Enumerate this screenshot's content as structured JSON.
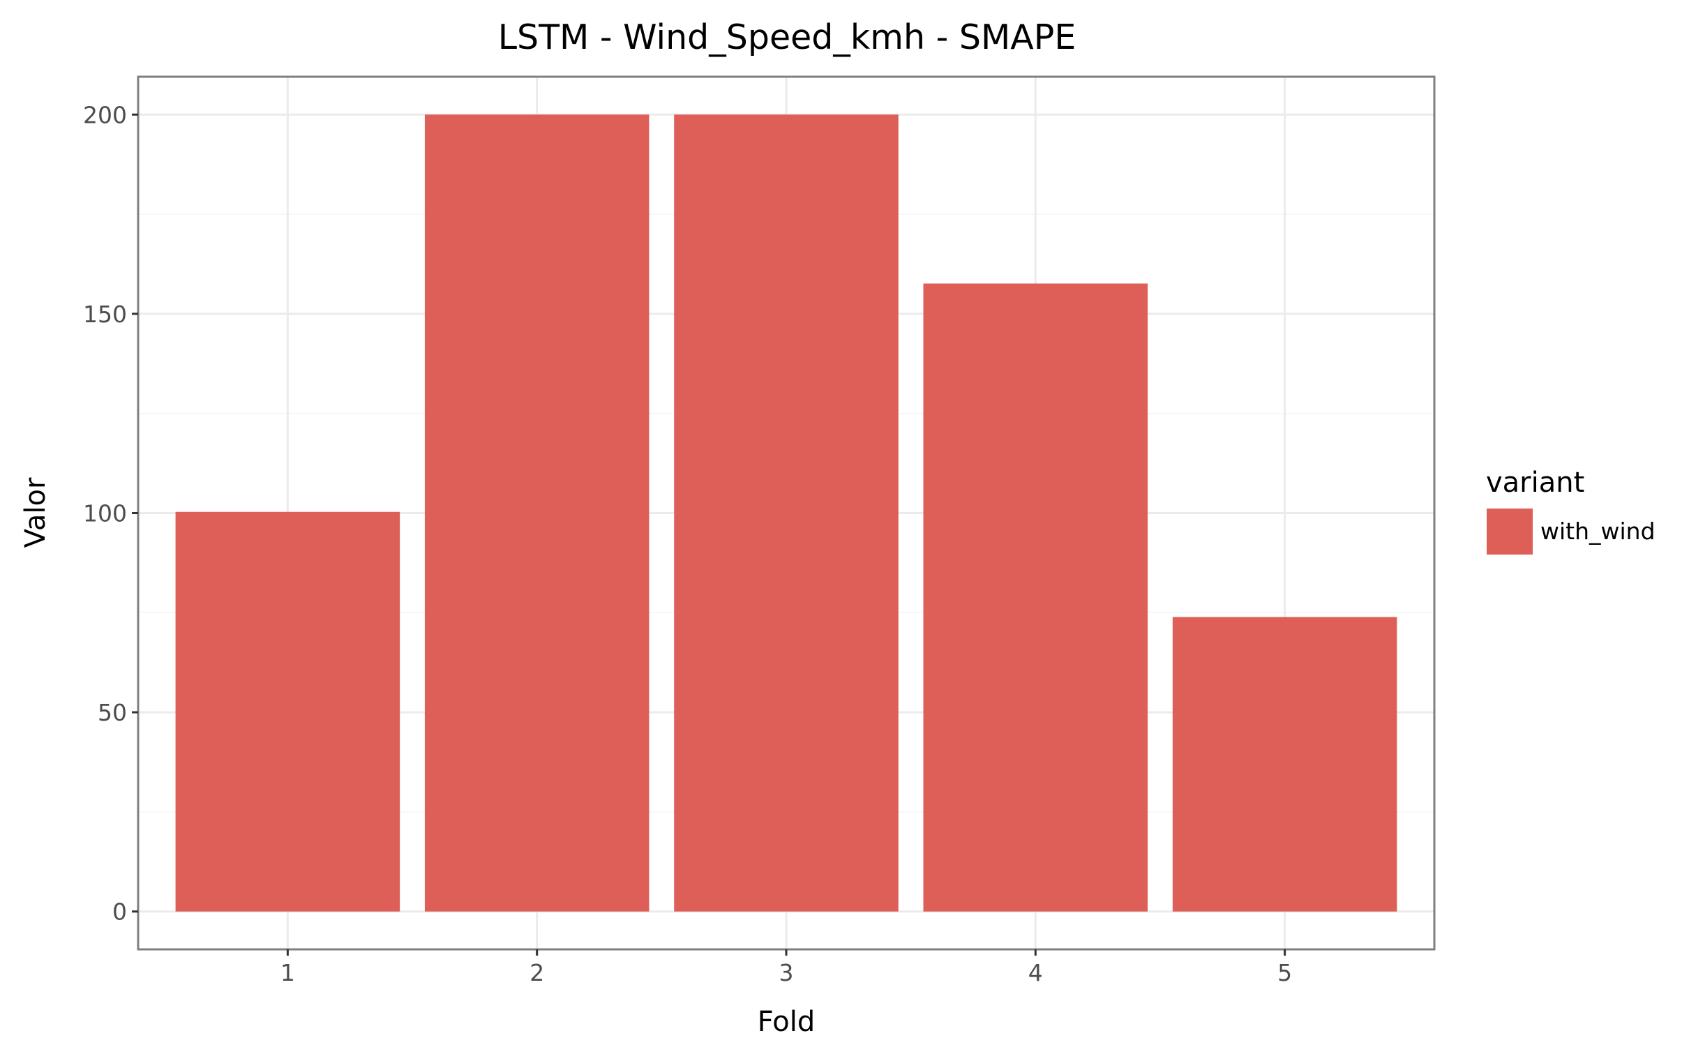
{
  "chart_data": {
    "type": "bar",
    "title": "LSTM - Wind_Speed_kmh - SMAPE",
    "xlabel": "Fold",
    "ylabel": "Valor",
    "categories": [
      "1",
      "2",
      "3",
      "4",
      "5"
    ],
    "series": [
      {
        "name": "with_wind",
        "values": [
          100.3,
          200.0,
          200.0,
          157.6,
          73.9
        ],
        "color": "#dd5f58"
      }
    ],
    "ylim": [
      -9.5,
      209.5
    ],
    "yticks": [
      0,
      50,
      100,
      150,
      200
    ],
    "ytick_labels": [
      "0",
      "50",
      "100",
      "150",
      "200"
    ],
    "grid": true,
    "legend": {
      "title": "variant",
      "position": "right"
    },
    "colors": {
      "bar": "#dd5f58",
      "grid_major": "#ebebeb",
      "grid_minor": "#f5f5f5",
      "panel_border": "#7f7f7f",
      "tick_text": "#4d4d4d"
    }
  }
}
